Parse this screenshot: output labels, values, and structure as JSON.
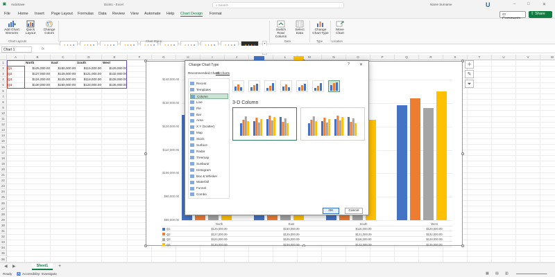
{
  "title_bar": {
    "autosave": "AutoSave",
    "doc_name": "Book1 - Excel",
    "search_placeholder": "Search",
    "user": "Name Surname",
    "logo_letter": "U",
    "minimize": "–",
    "maximize": "□",
    "close": "✕"
  },
  "menu": {
    "tabs": [
      "File",
      "Home",
      "Insert",
      "Page Layout",
      "Formulas",
      "Data",
      "Review",
      "View",
      "Automate",
      "Help",
      "Chart Design",
      "Format"
    ],
    "active_tab": "Chart Design",
    "comments": "Comments",
    "share": "Share"
  },
  "ribbon": {
    "add_chart_element": "Add Chart Element",
    "quick_layout": "Quick Layout",
    "change_colors": "Change Colors",
    "group_chart_layouts": "Chart Layouts",
    "group_chart_styles": "Chart Styles",
    "switch_row_column": "Switch Row/ Column",
    "select_data": "Select Data",
    "group_data": "Data",
    "change_chart_type": "Change Chart Type",
    "group_type": "Type",
    "move_chart": "Move Chart",
    "group_location": "Location"
  },
  "formula_bar": {
    "name_box": "Chart 1",
    "fx": "fx"
  },
  "grid": {
    "columns": [
      "A",
      "B",
      "C",
      "D",
      "E",
      "F",
      "G",
      "H",
      "I",
      "J",
      "K",
      "L",
      "M",
      "N",
      "O",
      "P",
      "Q",
      "R",
      "S",
      "T",
      "U",
      "V",
      "W",
      "X",
      "Y",
      "Z",
      "AA",
      "AB",
      "AC"
    ],
    "rows": [
      "1",
      "2",
      "3",
      "4",
      "5",
      "6",
      "7",
      "8",
      "9",
      "10",
      "11",
      "12",
      "13",
      "14",
      "15",
      "16",
      "17",
      "18",
      "19",
      "20",
      "21",
      "22",
      "23",
      "24",
      "25",
      "26",
      "27",
      "28",
      "29",
      "30",
      "31",
      "32",
      "33",
      "34",
      "35",
      "36"
    ],
    "table": {
      "headers": [
        "",
        "North",
        "East",
        "South",
        "West"
      ],
      "rows": [
        [
          "Q1",
          "$125,000.00",
          "$150,000.00",
          "$115,000.00",
          "$129,000.00"
        ],
        [
          "Q2",
          "$127,000.00",
          "$125,000.00",
          "$121,000.00",
          "$132,000.00"
        ],
        [
          "Q3",
          "$124,000.00",
          "$125,000.00",
          "$118,000.00",
          "$128,000.00"
        ],
        [
          "Q4",
          "$130,000.00",
          "$150,000.00",
          "$123,000.00",
          "$135,000.00"
        ]
      ]
    }
  },
  "chart": {
    "y_ticks": [
      "$140,000.00",
      "$130,000.00",
      "$120,000.00",
      "$110,000.00",
      "$100,000.00",
      "$90,000.00",
      "$80,000.00"
    ],
    "colors": {
      "Q1": "#4472c4",
      "Q2": "#ed7d31",
      "Q3": "#a5a5a5",
      "Q4": "#ffc000"
    },
    "table_header": [
      "North",
      "East",
      "South",
      "West"
    ],
    "table_rows": [
      {
        "label": "Q1",
        "values": [
          "$125,000.00",
          "$150,000.00",
          "$115,000.00",
          "$129,000.00"
        ]
      },
      {
        "label": "Q2",
        "values": [
          "$127,000.00",
          "$125,000.00",
          "$121,000.00",
          "$132,000.00"
        ]
      },
      {
        "label": "Q3",
        "values": [
          "$124,000.00",
          "$125,000.00",
          "$118,000.00",
          "$128,000.00"
        ]
      },
      {
        "label": "Q4",
        "values": [
          "$130,000.00",
          "$150,000.00",
          "$123,000.00",
          "$135,000.00"
        ]
      }
    ]
  },
  "dialog": {
    "title": "Change Chart Type",
    "help": "?",
    "close": "✕",
    "tabs": [
      "Recommended Charts",
      "All Charts"
    ],
    "active_tab": "All Charts",
    "chart_types": [
      "Recent",
      "Templates",
      "Column",
      "Line",
      "Pie",
      "Bar",
      "Area",
      "X Y (Scatter)",
      "Map",
      "Stock",
      "Surface",
      "Radar",
      "Treemap",
      "Sunburst",
      "Histogram",
      "Box & Whisker",
      "Waterfall",
      "Funnel",
      "Combo"
    ],
    "active_type": "Column",
    "subtype_title": "3-D Column",
    "ok": "OK",
    "cancel": "Cancel"
  },
  "sheets": {
    "tabs": [
      "Sheet1"
    ],
    "add": "+"
  },
  "status": {
    "ready": "Ready",
    "accessibility": "Accessibility: Investigate"
  }
}
